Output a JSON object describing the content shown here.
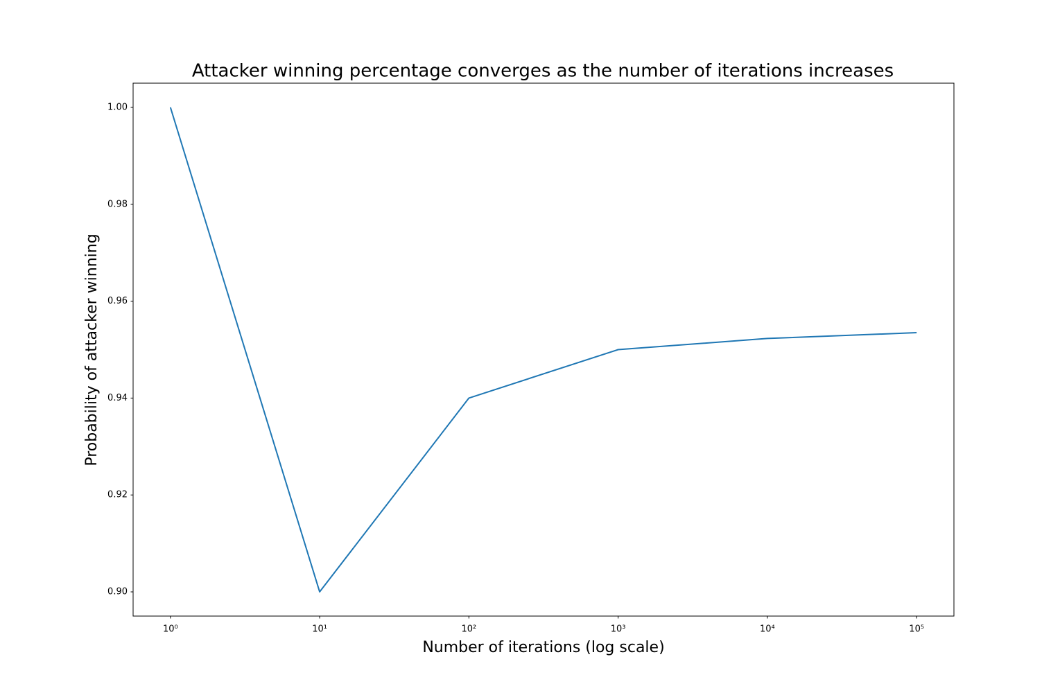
{
  "chart_data": {
    "type": "line",
    "title": "Attacker winning percentage converges as the number of iterations increases",
    "xlabel": "Number of iterations (log scale)",
    "ylabel": "Probability of attacker winning",
    "xscale": "log",
    "x": [
      1,
      10,
      100,
      1000,
      10000,
      100000
    ],
    "series": [
      {
        "color": "#1f77b4",
        "values": [
          1.0,
          0.9,
          0.94,
          0.95,
          0.9523,
          0.9535
        ]
      }
    ],
    "xlim": [
      0.5623,
      177828
    ],
    "ylim": [
      0.895,
      1.005
    ],
    "xticks": [
      {
        "value": 1,
        "label": "10⁰"
      },
      {
        "value": 10,
        "label": "10¹"
      },
      {
        "value": 100,
        "label": "10²"
      },
      {
        "value": 1000,
        "label": "10³"
      },
      {
        "value": 10000,
        "label": "10⁴"
      },
      {
        "value": 100000,
        "label": "10⁵"
      }
    ],
    "yticks": [
      {
        "value": 0.9,
        "label": "0.90"
      },
      0.92,
      0.94,
      0.96,
      0.98,
      {
        "value": 1.0,
        "label": "1.00"
      }
    ],
    "grid": false
  }
}
